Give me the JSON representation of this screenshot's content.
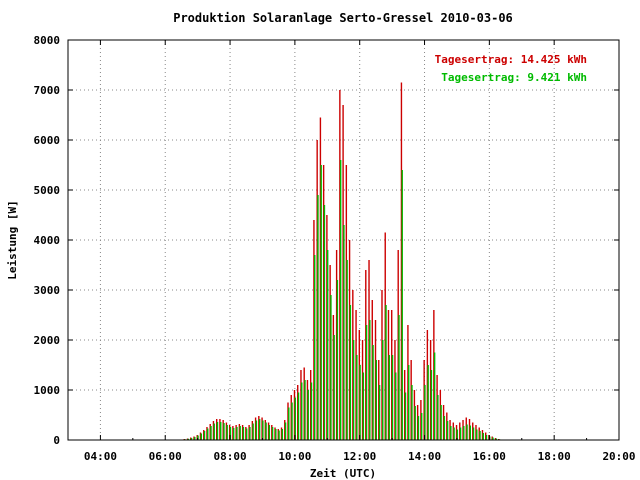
{
  "chart_data": {
    "type": "bar",
    "title": "Produktion Solaranlage Serto-Gressel 2010-03-06",
    "xlabel": "Zeit (UTC)",
    "ylabel": "Leistung [W]",
    "xlim": [
      3.0,
      20.0
    ],
    "ylim": [
      0,
      8000
    ],
    "x_ticks": [
      {
        "value": 4,
        "label": "04:00"
      },
      {
        "value": 6,
        "label": "06:00"
      },
      {
        "value": 8,
        "label": "08:00"
      },
      {
        "value": 10,
        "label": "10:00"
      },
      {
        "value": 12,
        "label": "12:00"
      },
      {
        "value": 14,
        "label": "14:00"
      },
      {
        "value": 16,
        "label": "16:00"
      },
      {
        "value": 18,
        "label": "18:00"
      },
      {
        "value": 20,
        "label": "20:00"
      }
    ],
    "y_ticks": [
      {
        "value": 0,
        "label": "0"
      },
      {
        "value": 1000,
        "label": "1000"
      },
      {
        "value": 2000,
        "label": "2000"
      },
      {
        "value": 3000,
        "label": "3000"
      },
      {
        "value": 4000,
        "label": "4000"
      },
      {
        "value": 5000,
        "label": "5000"
      },
      {
        "value": 6000,
        "label": "6000"
      },
      {
        "value": 7000,
        "label": "7000"
      },
      {
        "value": 8000,
        "label": "8000"
      }
    ],
    "grid": true,
    "legend_position": "top-right",
    "series": [
      {
        "name": "Tagesertrag: 14.425 kWh",
        "color": "#cc0000",
        "x": [
          6.6,
          6.7,
          6.8,
          6.9,
          7.0,
          7.1,
          7.2,
          7.3,
          7.4,
          7.5,
          7.6,
          7.7,
          7.8,
          7.9,
          8.0,
          8.1,
          8.2,
          8.3,
          8.4,
          8.5,
          8.6,
          8.7,
          8.8,
          8.9,
          9.0,
          9.1,
          9.2,
          9.3,
          9.4,
          9.5,
          9.6,
          9.7,
          9.8,
          9.9,
          10.0,
          10.1,
          10.2,
          10.3,
          10.4,
          10.5,
          10.6,
          10.7,
          10.8,
          10.9,
          11.0,
          11.1,
          11.2,
          11.3,
          11.4,
          11.5,
          11.6,
          11.7,
          11.8,
          11.9,
          12.0,
          12.1,
          12.2,
          12.3,
          12.4,
          12.5,
          12.6,
          12.7,
          12.8,
          12.9,
          13.0,
          13.1,
          13.2,
          13.3,
          13.4,
          13.5,
          13.6,
          13.7,
          13.8,
          13.9,
          14.0,
          14.1,
          14.2,
          14.3,
          14.4,
          14.5,
          14.6,
          14.7,
          14.8,
          14.9,
          15.0,
          15.1,
          15.2,
          15.3,
          15.4,
          15.5,
          15.6,
          15.7,
          15.8,
          15.9,
          16.0,
          16.1,
          16.2,
          16.3,
          16.4,
          16.5,
          16.6,
          16.7,
          16.8,
          16.9,
          17.0
        ],
        "values": [
          20,
          30,
          50,
          70,
          100,
          150,
          200,
          260,
          320,
          380,
          420,
          420,
          400,
          350,
          300,
          280,
          300,
          320,
          300,
          260,
          300,
          380,
          450,
          480,
          450,
          400,
          350,
          300,
          250,
          220,
          250,
          400,
          750,
          900,
          1000,
          1100,
          1400,
          1450,
          1200,
          1400,
          4400,
          6000,
          6450,
          5500,
          4500,
          3500,
          2500,
          3800,
          7000,
          6700,
          5500,
          4000,
          3000,
          2600,
          2200,
          2000,
          3400,
          3600,
          2800,
          2400,
          1600,
          3000,
          4150,
          2600,
          2600,
          2000,
          3800,
          7150,
          1400,
          2300,
          1600,
          1000,
          700,
          800,
          1600,
          2200,
          2000,
          2600,
          1300,
          1000,
          700,
          550,
          400,
          350,
          300,
          350,
          400,
          450,
          420,
          350,
          300,
          250,
          200,
          150,
          100,
          70,
          40,
          20,
          10,
          5,
          3,
          2,
          1,
          1,
          0
        ],
        "bar_offset": -0.4
      },
      {
        "name": "Tagesertrag: 9.421 kWh",
        "color": "#00bb00",
        "x": [
          6.6,
          6.7,
          6.8,
          6.9,
          7.0,
          7.1,
          7.2,
          7.3,
          7.4,
          7.5,
          7.6,
          7.7,
          7.8,
          7.9,
          8.0,
          8.1,
          8.2,
          8.3,
          8.4,
          8.5,
          8.6,
          8.7,
          8.8,
          8.9,
          9.0,
          9.1,
          9.2,
          9.3,
          9.4,
          9.5,
          9.6,
          9.7,
          9.8,
          9.9,
          10.0,
          10.1,
          10.2,
          10.3,
          10.4,
          10.5,
          10.6,
          10.7,
          10.8,
          10.9,
          11.0,
          11.1,
          11.2,
          11.3,
          11.4,
          11.5,
          11.6,
          11.7,
          11.8,
          11.9,
          12.0,
          12.1,
          12.2,
          12.3,
          12.4,
          12.5,
          12.6,
          12.7,
          12.8,
          12.9,
          13.0,
          13.1,
          13.2,
          13.3,
          13.4,
          13.5,
          13.6,
          13.7,
          13.8,
          13.9,
          14.0,
          14.1,
          14.2,
          14.3,
          14.4,
          14.5,
          14.6,
          14.7,
          14.8,
          14.9,
          15.0,
          15.1,
          15.2,
          15.3,
          15.4,
          15.5,
          15.6,
          15.7,
          15.8,
          15.9,
          16.0,
          16.1,
          16.2,
          16.3,
          16.4,
          16.5,
          16.6,
          16.7,
          16.8,
          16.9,
          17.0
        ],
        "values": [
          15,
          25,
          40,
          60,
          90,
          130,
          180,
          230,
          280,
          330,
          360,
          360,
          340,
          300,
          260,
          240,
          260,
          280,
          260,
          230,
          260,
          330,
          390,
          420,
          390,
          350,
          300,
          260,
          220,
          190,
          220,
          350,
          650,
          750,
          850,
          950,
          1150,
          1200,
          1000,
          1150,
          3700,
          4900,
          5500,
          4700,
          3800,
          2900,
          2100,
          3200,
          5600,
          4300,
          3600,
          2700,
          2000,
          1700,
          1500,
          1350,
          2300,
          2400,
          1900,
          1600,
          1100,
          2000,
          2700,
          1700,
          1700,
          1350,
          2500,
          5400,
          950,
          1500,
          1100,
          680,
          480,
          540,
          1100,
          1500,
          1400,
          1750,
          900,
          700,
          480,
          380,
          280,
          250,
          210,
          250,
          280,
          310,
          290,
          250,
          210,
          180,
          140,
          100,
          70,
          50,
          30,
          15,
          8,
          4,
          2,
          1,
          1,
          1,
          0
        ],
        "bar_offset": 0.4
      }
    ]
  }
}
